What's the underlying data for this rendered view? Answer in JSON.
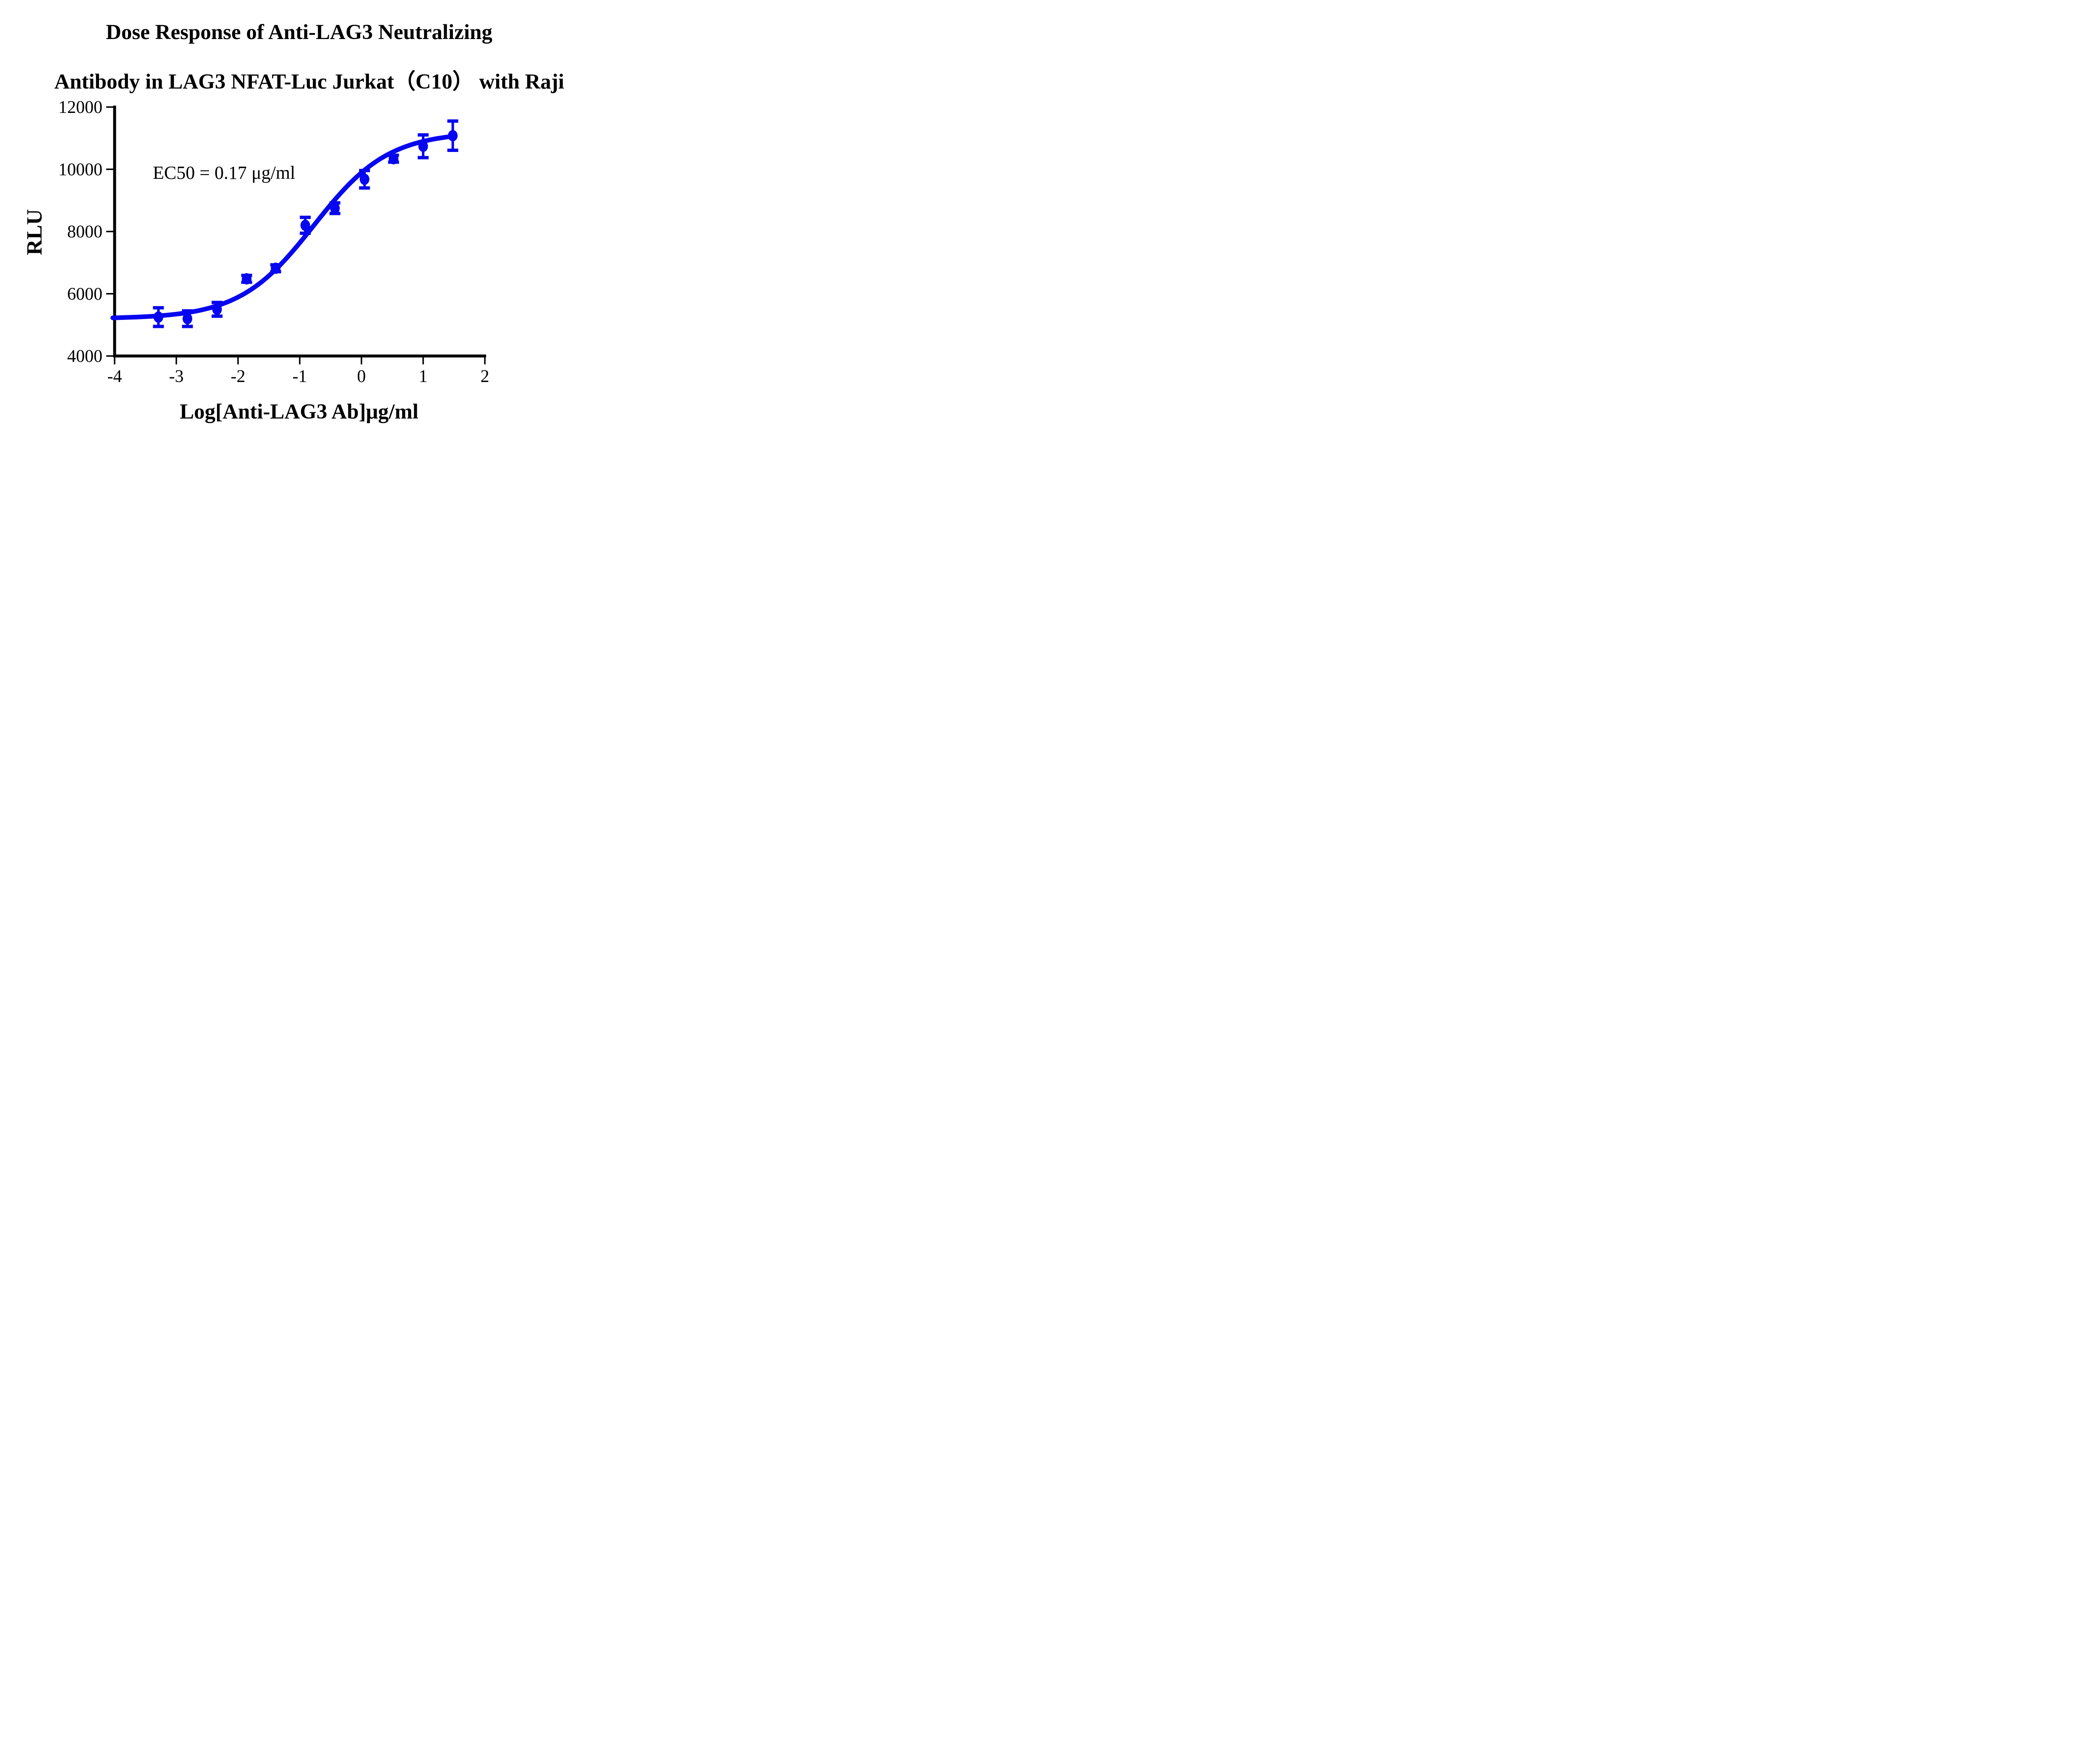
{
  "figure": {
    "title_line1": "Dose Response of Anti-LAG3 Neutralizing",
    "title_line2": "Antibody in LAG3 NFAT-Luc Jurkat（C10） with Raji",
    "ylabel": "RLU",
    "xlabel": "Log[Anti-LAG3 Ab]μg/ml",
    "annotation": "EC50 = 0.17 μg/ml"
  },
  "chart_data": {
    "type": "scatter",
    "title": "Dose Response of Anti-LAG3 Neutralizing Antibody in LAG3 NFAT-Luc Jurkat（C10） with Raji",
    "xlabel": "Log[Anti-LAG3 Ab]μg/ml",
    "ylabel": "RLU",
    "xlim": [
      -4,
      2
    ],
    "ylim": [
      4000,
      12000
    ],
    "x_ticks": [
      -4,
      -3,
      -2,
      -1,
      0,
      1,
      2
    ],
    "y_ticks": [
      4000,
      6000,
      8000,
      10000,
      12000
    ],
    "grid": false,
    "legend": "none",
    "annotation_text": "EC50 = 0.17 μg/ml",
    "ec50_ug_ml": 0.17,
    "colors": {
      "series": "#0606f0",
      "axis": "#000000"
    },
    "series": [
      {
        "name": "Anti-LAG3 Ab",
        "marker": "circle",
        "points": [
          {
            "x": -3.29,
            "y": 5250,
            "err": 300
          },
          {
            "x": -2.82,
            "y": 5200,
            "err": 250
          },
          {
            "x": -2.34,
            "y": 5500,
            "err": 220
          },
          {
            "x": -1.86,
            "y": 6480,
            "err": 110
          },
          {
            "x": -1.39,
            "y": 6820,
            "err": 110
          },
          {
            "x": -0.91,
            "y": 8200,
            "err": 255
          },
          {
            "x": -0.43,
            "y": 8750,
            "err": 170
          },
          {
            "x": 0.05,
            "y": 9680,
            "err": 280
          },
          {
            "x": 0.52,
            "y": 10340,
            "err": 110
          },
          {
            "x": 1.0,
            "y": 10740,
            "err": 365
          },
          {
            "x": 1.48,
            "y": 11080,
            "err": 470
          }
        ],
        "fit": {
          "type": "4PL",
          "bottom": 5200,
          "top": 11200,
          "logEC50": -0.77,
          "hill": 0.72,
          "x_start": -4.03,
          "x_end": 1.48
        }
      }
    ]
  }
}
